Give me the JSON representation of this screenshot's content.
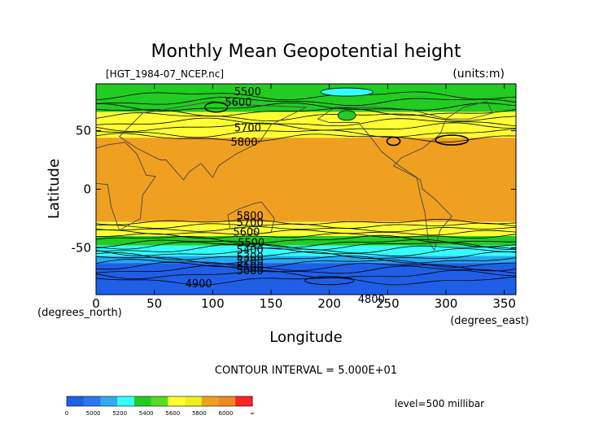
{
  "chart_data": {
    "type": "heatmap",
    "title": "Monthly Mean Geopotential height",
    "subtitle_left": "[HGT_1984-07_NCEP.nc]",
    "subtitle_right": "(units:m)",
    "xlabel": "Longitude",
    "ylabel": "Latitude",
    "x_unit_label": "(degrees_east)",
    "y_unit_label": "(degrees_north)",
    "xlim": [
      0,
      360
    ],
    "ylim": [
      -90,
      90
    ],
    "x_ticks": [
      0,
      50,
      100,
      150,
      200,
      250,
      300,
      350
    ],
    "y_ticks": [
      50,
      0,
      -50
    ],
    "contour_interval_text": "CONTOUR INTERVAL = 5.000E+01",
    "level_text": "level=500 millibar",
    "contour_labels": [
      {
        "text": "5500",
        "lon": 130,
        "lat": 83
      },
      {
        "text": "5600",
        "lon": 122,
        "lat": 74
      },
      {
        "text": "5700",
        "lon": 130,
        "lat": 52
      },
      {
        "text": "5800",
        "lon": 127,
        "lat": 40
      },
      {
        "text": "5800",
        "lon": 132,
        "lat": -23
      },
      {
        "text": "5700",
        "lon": 132,
        "lat": -29
      },
      {
        "text": "5600",
        "lon": 129,
        "lat": -37
      },
      {
        "text": "5500",
        "lon": 133,
        "lat": -46
      },
      {
        "text": "5400",
        "lon": 132,
        "lat": -52
      },
      {
        "text": "5300",
        "lon": 132,
        "lat": -58
      },
      {
        "text": "5200",
        "lon": 132,
        "lat": -62
      },
      {
        "text": "5100",
        "lon": 132,
        "lat": -66
      },
      {
        "text": "5000",
        "lon": 132,
        "lat": -70
      },
      {
        "text": "4900",
        "lon": 88,
        "lat": -81
      },
      {
        "text": "4800",
        "lon": 236,
        "lat": -94
      }
    ],
    "bands": [
      {
        "lat_top": 90,
        "lat_bottom": 66,
        "color": "#22cc22"
      },
      {
        "lat_top": 66,
        "lat_bottom": 44,
        "color": "#ffff33"
      },
      {
        "lat_top": 44,
        "lat_bottom": -28,
        "color": "#f0a020"
      },
      {
        "lat_top": -28,
        "lat_bottom": -40,
        "color": "#ffff33"
      },
      {
        "lat_top": -40,
        "lat_bottom": -48,
        "color": "#22cc22"
      },
      {
        "lat_top": -48,
        "lat_bottom": -57,
        "color": "#33ffff"
      },
      {
        "lat_top": -57,
        "lat_bottom": -63,
        "color": "#22aaee"
      },
      {
        "lat_top": -63,
        "lat_bottom": -90,
        "color": "#1f5fe8"
      }
    ],
    "colorbar": {
      "tick_labels": [
        "0",
        "5000",
        "5200",
        "5400",
        "5600",
        "5800",
        "6000",
        "∞"
      ],
      "colors": [
        "#1f5fe8",
        "#2a78ef",
        "#33aaee",
        "#33ffff",
        "#22cc22",
        "#55dd22",
        "#ffff33",
        "#eeee22",
        "#f0a020",
        "#ee8822",
        "#ff2222"
      ]
    }
  }
}
